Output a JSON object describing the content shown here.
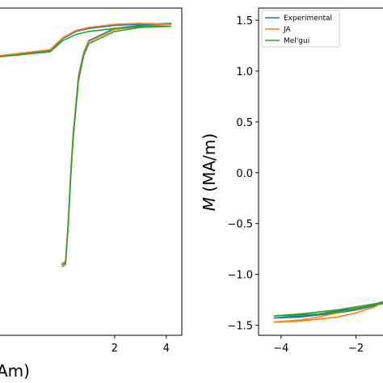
{
  "chart_data": [
    {
      "type": "line",
      "title": "",
      "xlabel": "Am)",
      "ylabel": "",
      "x_ticks": [
        "2",
        "4"
      ],
      "xlim": [
        -2.5,
        4.6
      ],
      "ylim": [
        -1.6,
        1.62
      ],
      "grid": false,
      "series": [
        {
          "color": "#1f77b4",
          "x": [
            -2.5,
            -0.5,
            0.0,
            0.5,
            1.0,
            2.0,
            3.0,
            4.2,
            3.0,
            2.0,
            1.0,
            0.8,
            0.6,
            0.4,
            0.3,
            0.2,
            0.1,
            0.0,
            -0.05
          ],
          "y": [
            1.15,
            1.2,
            1.32,
            1.39,
            1.42,
            1.45,
            1.46,
            1.47,
            1.45,
            1.42,
            1.3,
            1.18,
            0.95,
            0.4,
            0.0,
            -0.5,
            -0.88,
            -0.9,
            -0.9
          ]
        },
        {
          "color": "#ff7f0e",
          "x": [
            -2.5,
            -0.5,
            0.0,
            0.5,
            1.0,
            2.0,
            3.0,
            4.2,
            3.0,
            2.0,
            1.0,
            0.8,
            0.6,
            0.4,
            0.3,
            0.2,
            0.1,
            0.0,
            -0.05
          ],
          "y": [
            1.15,
            1.21,
            1.33,
            1.4,
            1.43,
            1.46,
            1.47,
            1.46,
            1.44,
            1.41,
            1.29,
            1.17,
            0.93,
            0.38,
            -0.02,
            -0.52,
            -0.87,
            -0.89,
            -0.89
          ]
        },
        {
          "color": "#2ca02c",
          "x": [
            -2.5,
            -0.5,
            0.0,
            0.5,
            1.0,
            2.0,
            3.0,
            4.2,
            3.0,
            2.0,
            1.0,
            0.8,
            0.6,
            0.4,
            0.3,
            0.2,
            0.1,
            0.0,
            -0.05
          ],
          "y": [
            1.14,
            1.19,
            1.3,
            1.36,
            1.39,
            1.42,
            1.44,
            1.44,
            1.43,
            1.39,
            1.27,
            1.15,
            0.9,
            0.35,
            -0.05,
            -0.55,
            -0.9,
            -0.92,
            -0.92
          ]
        }
      ]
    },
    {
      "type": "line",
      "title": "",
      "xlabel": "",
      "ylabel": "M (MA/m)",
      "ylabel_italic": "M",
      "ylabel_rest": " (MA/m)",
      "y_ticks": [
        "1.5",
        "1.0",
        "0.5",
        "0.0",
        "−0.5",
        "−1.0",
        "−1.5"
      ],
      "y_tick_values": [
        1.5,
        1.0,
        0.5,
        0.0,
        -0.5,
        -1.0,
        -1.5
      ],
      "x_ticks": [
        "−4",
        "−2"
      ],
      "x_tick_values": [
        -4,
        -2
      ],
      "xlim": [
        -4.6,
        -1.15
      ],
      "ylim": [
        -1.6,
        1.62
      ],
      "grid": false,
      "legend_position": "top-left",
      "series": [
        {
          "name": "Experimental",
          "color": "#1f77b4",
          "x": [
            -4.2,
            -3.5,
            -3.0,
            -2.5,
            -2.0,
            -1.5,
            -1.2,
            -1.5,
            -2.0,
            -2.5,
            -3.0,
            -3.5,
            -4.2
          ],
          "y": [
            -1.43,
            -1.41,
            -1.39,
            -1.36,
            -1.33,
            -1.3,
            -1.28,
            -1.31,
            -1.35,
            -1.38,
            -1.4,
            -1.42,
            -1.43
          ]
        },
        {
          "name": "JA",
          "color": "#ff7f0e",
          "x": [
            -4.2,
            -3.5,
            -3.0,
            -2.5,
            -2.0,
            -1.5,
            -1.2,
            -1.5,
            -2.0,
            -2.5,
            -3.0,
            -3.5,
            -4.2
          ],
          "y": [
            -1.47,
            -1.45,
            -1.42,
            -1.38,
            -1.33,
            -1.29,
            -1.26,
            -1.32,
            -1.38,
            -1.42,
            -1.44,
            -1.46,
            -1.47
          ]
        },
        {
          "name": "Mel'gui",
          "color": "#2ca02c",
          "x": [
            -4.2,
            -3.5,
            -3.0,
            -2.5,
            -2.0,
            -1.5,
            -1.2,
            -1.5,
            -2.0,
            -2.5,
            -3.0,
            -3.5,
            -4.2
          ],
          "y": [
            -1.41,
            -1.39,
            -1.37,
            -1.35,
            -1.32,
            -1.29,
            -1.27,
            -1.3,
            -1.34,
            -1.37,
            -1.39,
            -1.4,
            -1.41
          ]
        }
      ]
    }
  ]
}
